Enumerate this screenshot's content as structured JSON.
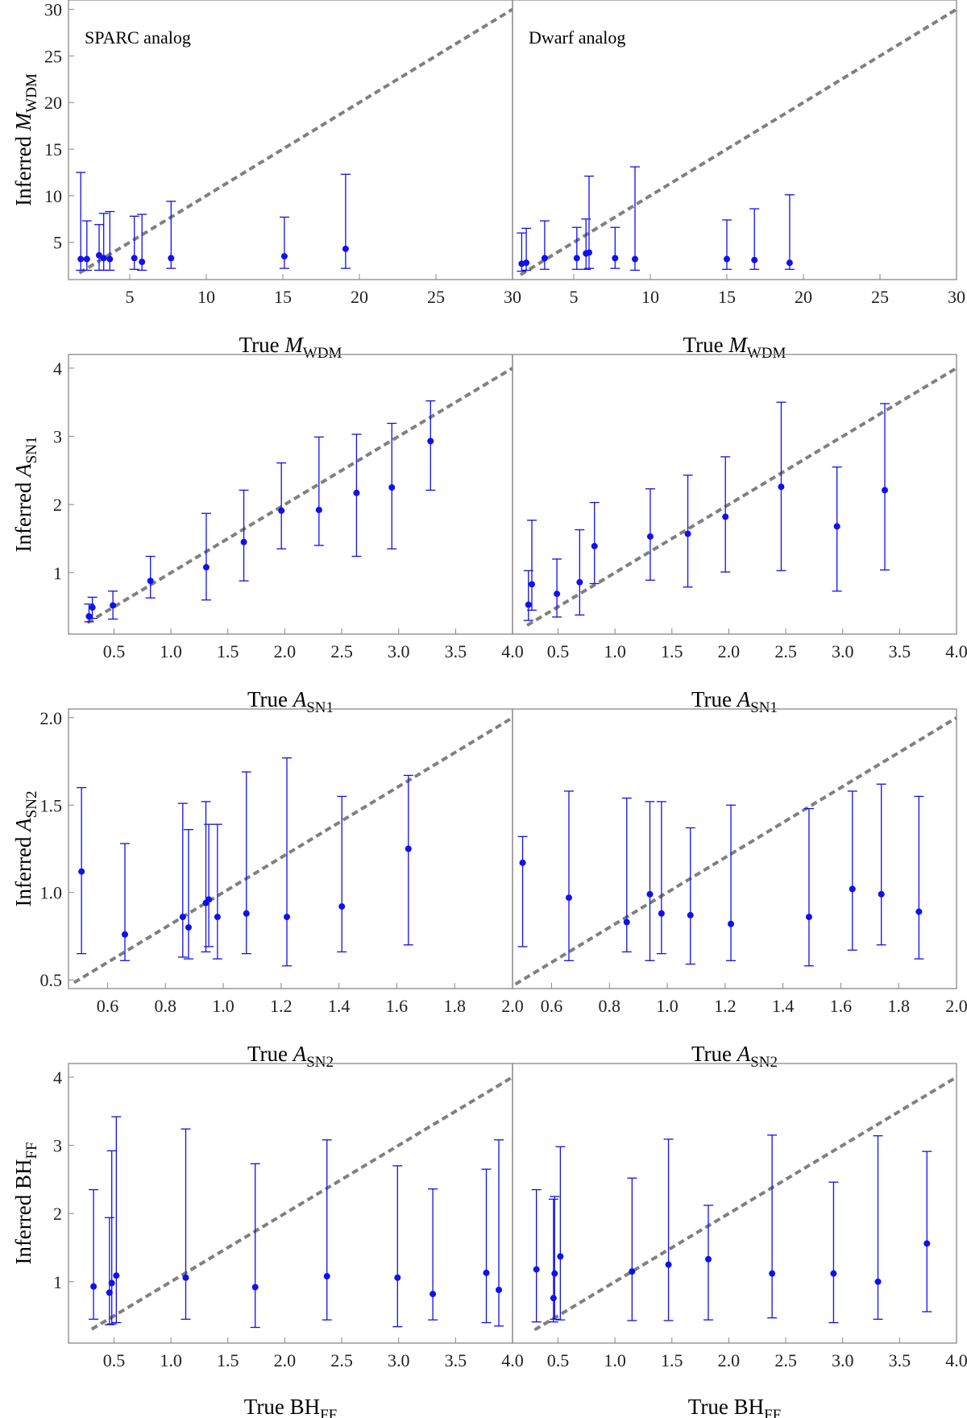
{
  "colors": {
    "points": "#1010f0",
    "diagonal": "#808080",
    "frame": "#888888"
  },
  "chart_data": [
    {
      "type": "scatter",
      "title": "SPARC analog",
      "xlabel": {
        "prefix": "True ",
        "symbol": "M",
        "sub": "WDM"
      },
      "ylabel": {
        "prefix": "Inferred ",
        "symbol": "M",
        "sub": "WDM"
      },
      "xlim": [
        1,
        30
      ],
      "ylim": [
        1,
        31
      ],
      "xticks": [
        5,
        10,
        15,
        20,
        25,
        30
      ],
      "yticks": [
        5,
        10,
        15,
        20,
        25,
        30
      ],
      "reference_line": "y = x",
      "points": [
        {
          "x": 1.8,
          "y": 3.2,
          "lo": 2.0,
          "hi": 12.5
        },
        {
          "x": 2.2,
          "y": 3.2,
          "lo": 2.0,
          "hi": 7.3
        },
        {
          "x": 3.0,
          "y": 3.6,
          "lo": 2.0,
          "hi": 6.9
        },
        {
          "x": 3.3,
          "y": 3.3,
          "lo": 2.0,
          "hi": 8.1
        },
        {
          "x": 3.7,
          "y": 3.2,
          "lo": 2.0,
          "hi": 8.3
        },
        {
          "x": 5.3,
          "y": 3.3,
          "lo": 2.1,
          "hi": 7.8
        },
        {
          "x": 5.8,
          "y": 2.9,
          "lo": 2.0,
          "hi": 8.0
        },
        {
          "x": 7.7,
          "y": 3.3,
          "lo": 2.2,
          "hi": 9.4
        },
        {
          "x": 15.1,
          "y": 3.5,
          "lo": 2.2,
          "hi": 7.7
        },
        {
          "x": 19.1,
          "y": 4.3,
          "lo": 2.2,
          "hi": 12.3
        }
      ]
    },
    {
      "type": "scatter",
      "title": "Dwarf analog",
      "xlabel": {
        "prefix": "True ",
        "symbol": "M",
        "sub": "WDM"
      },
      "ylabel": null,
      "xlim": [
        1,
        30
      ],
      "ylim": [
        1,
        31
      ],
      "xticks": [
        5,
        10,
        15,
        20,
        25,
        30
      ],
      "yticks": [],
      "reference_line": "y = x",
      "points": [
        {
          "x": 1.6,
          "y": 2.7,
          "lo": 1.9,
          "hi": 6.0
        },
        {
          "x": 1.9,
          "y": 2.8,
          "lo": 2.0,
          "hi": 6.5
        },
        {
          "x": 3.1,
          "y": 3.3,
          "lo": 2.1,
          "hi": 7.3
        },
        {
          "x": 5.2,
          "y": 3.3,
          "lo": 2.1,
          "hi": 6.6
        },
        {
          "x": 5.8,
          "y": 3.8,
          "lo": 2.1,
          "hi": 7.5
        },
        {
          "x": 6.0,
          "y": 3.9,
          "lo": 2.2,
          "hi": 12.1
        },
        {
          "x": 7.7,
          "y": 3.3,
          "lo": 2.2,
          "hi": 6.6
        },
        {
          "x": 9.0,
          "y": 3.2,
          "lo": 2.0,
          "hi": 13.1
        },
        {
          "x": 15.0,
          "y": 3.2,
          "lo": 2.1,
          "hi": 7.4
        },
        {
          "x": 16.8,
          "y": 3.1,
          "lo": 2.1,
          "hi": 8.6
        },
        {
          "x": 19.1,
          "y": 2.8,
          "lo": 2.1,
          "hi": 10.1
        }
      ]
    },
    {
      "type": "scatter",
      "title": "",
      "xlabel": {
        "prefix": "True ",
        "symbol": "A",
        "sub": "SN1"
      },
      "ylabel": {
        "prefix": "Inferred ",
        "symbol": "A",
        "sub": "SN1"
      },
      "xlim": [
        0.1,
        4.0
      ],
      "ylim": [
        0.1,
        4.2
      ],
      "xticks": [
        0.5,
        1.0,
        1.5,
        2.0,
        2.5,
        3.0,
        3.5,
        4.0
      ],
      "yticks": [
        1,
        2,
        3,
        4
      ],
      "reference_line": "y = x",
      "points": [
        {
          "x": 0.28,
          "y": 0.36,
          "lo": 0.28,
          "hi": 0.54
        },
        {
          "x": 0.31,
          "y": 0.49,
          "lo": 0.33,
          "hi": 0.64
        },
        {
          "x": 0.49,
          "y": 0.52,
          "lo": 0.32,
          "hi": 0.73
        },
        {
          "x": 0.82,
          "y": 0.88,
          "lo": 0.63,
          "hi": 1.24
        },
        {
          "x": 1.31,
          "y": 1.08,
          "lo": 0.6,
          "hi": 1.87
        },
        {
          "x": 1.64,
          "y": 1.45,
          "lo": 0.88,
          "hi": 2.21
        },
        {
          "x": 1.97,
          "y": 1.91,
          "lo": 1.35,
          "hi": 2.61
        },
        {
          "x": 2.3,
          "y": 1.92,
          "lo": 1.4,
          "hi": 2.99
        },
        {
          "x": 2.63,
          "y": 2.17,
          "lo": 1.24,
          "hi": 3.03
        },
        {
          "x": 2.94,
          "y": 2.25,
          "lo": 1.35,
          "hi": 3.19
        },
        {
          "x": 3.28,
          "y": 2.93,
          "lo": 2.21,
          "hi": 3.52
        }
      ]
    },
    {
      "type": "scatter",
      "title": "",
      "xlabel": {
        "prefix": "True ",
        "symbol": "A",
        "sub": "SN1"
      },
      "ylabel": null,
      "xlim": [
        0.1,
        4.0
      ],
      "ylim": [
        0.1,
        4.2
      ],
      "xticks": [
        0.5,
        1.0,
        1.5,
        2.0,
        2.5,
        3.0,
        3.5,
        4.0
      ],
      "yticks": [],
      "reference_line": "y = x",
      "points": [
        {
          "x": 0.24,
          "y": 0.53,
          "lo": 0.3,
          "hi": 1.03
        },
        {
          "x": 0.27,
          "y": 0.83,
          "lo": 0.45,
          "hi": 1.77
        },
        {
          "x": 0.49,
          "y": 0.69,
          "lo": 0.35,
          "hi": 1.2
        },
        {
          "x": 0.69,
          "y": 0.86,
          "lo": 0.38,
          "hi": 1.63
        },
        {
          "x": 0.82,
          "y": 1.39,
          "lo": 0.84,
          "hi": 2.03
        },
        {
          "x": 1.31,
          "y": 1.53,
          "lo": 0.89,
          "hi": 2.23
        },
        {
          "x": 1.64,
          "y": 1.57,
          "lo": 0.79,
          "hi": 2.43
        },
        {
          "x": 1.97,
          "y": 1.82,
          "lo": 1.01,
          "hi": 2.7
        },
        {
          "x": 2.46,
          "y": 2.26,
          "lo": 1.03,
          "hi": 3.5
        },
        {
          "x": 2.95,
          "y": 1.68,
          "lo": 0.73,
          "hi": 2.55
        },
        {
          "x": 3.37,
          "y": 2.21,
          "lo": 1.04,
          "hi": 3.48
        }
      ]
    },
    {
      "type": "scatter",
      "title": "",
      "xlabel": {
        "prefix": "True ",
        "symbol": "A",
        "sub": "SN2"
      },
      "ylabel": {
        "prefix": "Inferred ",
        "symbol": "A",
        "sub": "SN2"
      },
      "xlim": [
        0.465,
        2.0
      ],
      "ylim": [
        0.45,
        2.05
      ],
      "xticks": [
        0.6,
        0.8,
        1.0,
        1.2,
        1.4,
        1.6,
        1.8,
        2.0
      ],
      "yticks": [
        0.5,
        1.0,
        1.5,
        2.0
      ],
      "reference_line": "y = x",
      "points": [
        {
          "x": 0.51,
          "y": 1.12,
          "lo": 0.65,
          "hi": 1.6
        },
        {
          "x": 0.66,
          "y": 0.76,
          "lo": 0.61,
          "hi": 1.28
        },
        {
          "x": 0.86,
          "y": 0.86,
          "lo": 0.63,
          "hi": 1.51
        },
        {
          "x": 0.88,
          "y": 0.8,
          "lo": 0.62,
          "hi": 1.36
        },
        {
          "x": 0.94,
          "y": 0.94,
          "lo": 0.66,
          "hi": 1.52
        },
        {
          "x": 0.95,
          "y": 0.96,
          "lo": 0.69,
          "hi": 1.39
        },
        {
          "x": 0.98,
          "y": 0.86,
          "lo": 0.62,
          "hi": 1.39
        },
        {
          "x": 1.08,
          "y": 0.88,
          "lo": 0.65,
          "hi": 1.69
        },
        {
          "x": 1.22,
          "y": 0.86,
          "lo": 0.58,
          "hi": 1.77
        },
        {
          "x": 1.41,
          "y": 0.92,
          "lo": 0.66,
          "hi": 1.55
        },
        {
          "x": 1.64,
          "y": 1.25,
          "lo": 0.7,
          "hi": 1.67
        }
      ]
    },
    {
      "type": "scatter",
      "title": "",
      "xlabel": {
        "prefix": "True ",
        "symbol": "A",
        "sub": "SN2"
      },
      "ylabel": null,
      "xlim": [
        0.465,
        2.0
      ],
      "ylim": [
        0.45,
        2.05
      ],
      "xticks": [
        0.6,
        0.8,
        1.0,
        1.2,
        1.4,
        1.6,
        1.8,
        2.0
      ],
      "yticks": [],
      "reference_line": "y = x",
      "points": [
        {
          "x": 0.5,
          "y": 1.17,
          "lo": 0.69,
          "hi": 1.32
        },
        {
          "x": 0.66,
          "y": 0.97,
          "lo": 0.61,
          "hi": 1.58
        },
        {
          "x": 0.86,
          "y": 0.83,
          "lo": 0.66,
          "hi": 1.54
        },
        {
          "x": 0.94,
          "y": 0.99,
          "lo": 0.61,
          "hi": 1.52
        },
        {
          "x": 0.98,
          "y": 0.88,
          "lo": 0.65,
          "hi": 1.52
        },
        {
          "x": 1.08,
          "y": 0.87,
          "lo": 0.59,
          "hi": 1.37
        },
        {
          "x": 1.22,
          "y": 0.82,
          "lo": 0.61,
          "hi": 1.5
        },
        {
          "x": 1.49,
          "y": 0.86,
          "lo": 0.58,
          "hi": 1.48
        },
        {
          "x": 1.64,
          "y": 1.02,
          "lo": 0.67,
          "hi": 1.58
        },
        {
          "x": 1.74,
          "y": 0.99,
          "lo": 0.7,
          "hi": 1.62
        },
        {
          "x": 1.87,
          "y": 0.89,
          "lo": 0.62,
          "hi": 1.55
        }
      ]
    },
    {
      "type": "scatter",
      "title": "",
      "xlabel": {
        "prefix": "True ",
        "symbol": "BH",
        "sub": "FF"
      },
      "ylabel": {
        "prefix": "Inferred ",
        "symbol": "BH",
        "sub": "FF"
      },
      "xlim": [
        0.1,
        4.0
      ],
      "ylim": [
        0.1,
        4.2
      ],
      "xticks": [
        0.5,
        1.0,
        1.5,
        2.0,
        2.5,
        3.0,
        3.5,
        4.0
      ],
      "yticks": [
        1,
        2,
        3,
        4
      ],
      "reference_line": "y = x",
      "points": [
        {
          "x": 0.32,
          "y": 0.93,
          "lo": 0.45,
          "hi": 2.35
        },
        {
          "x": 0.46,
          "y": 0.84,
          "lo": 0.37,
          "hi": 1.94
        },
        {
          "x": 0.48,
          "y": 0.98,
          "lo": 0.38,
          "hi": 2.92
        },
        {
          "x": 0.52,
          "y": 1.09,
          "lo": 0.4,
          "hi": 3.42
        },
        {
          "x": 1.13,
          "y": 1.06,
          "lo": 0.45,
          "hi": 3.24
        },
        {
          "x": 1.74,
          "y": 0.92,
          "lo": 0.33,
          "hi": 2.73
        },
        {
          "x": 2.37,
          "y": 1.08,
          "lo": 0.44,
          "hi": 3.08
        },
        {
          "x": 2.99,
          "y": 1.06,
          "lo": 0.34,
          "hi": 2.7
        },
        {
          "x": 3.3,
          "y": 0.82,
          "lo": 0.44,
          "hi": 2.36
        },
        {
          "x": 3.77,
          "y": 1.13,
          "lo": 0.4,
          "hi": 2.65
        },
        {
          "x": 3.88,
          "y": 0.88,
          "lo": 0.35,
          "hi": 3.08
        }
      ]
    },
    {
      "type": "scatter",
      "title": "",
      "xlabel": {
        "prefix": "True ",
        "symbol": "BH",
        "sub": "FF"
      },
      "ylabel": null,
      "xlim": [
        0.1,
        4.0
      ],
      "ylim": [
        0.1,
        4.2
      ],
      "xticks": [
        0.5,
        1.0,
        1.5,
        2.0,
        2.5,
        3.0,
        3.5,
        4.0
      ],
      "yticks": [],
      "reference_line": "y = x",
      "points": [
        {
          "x": 0.31,
          "y": 1.18,
          "lo": 0.41,
          "hi": 2.35
        },
        {
          "x": 0.46,
          "y": 0.76,
          "lo": 0.41,
          "hi": 2.21
        },
        {
          "x": 0.47,
          "y": 1.12,
          "lo": 0.45,
          "hi": 2.25
        },
        {
          "x": 0.52,
          "y": 1.37,
          "lo": 0.44,
          "hi": 2.98
        },
        {
          "x": 1.15,
          "y": 1.15,
          "lo": 0.43,
          "hi": 2.52
        },
        {
          "x": 1.47,
          "y": 1.25,
          "lo": 0.43,
          "hi": 3.09
        },
        {
          "x": 1.82,
          "y": 1.33,
          "lo": 0.44,
          "hi": 2.12
        },
        {
          "x": 2.38,
          "y": 1.12,
          "lo": 0.47,
          "hi": 3.15
        },
        {
          "x": 2.92,
          "y": 1.12,
          "lo": 0.4,
          "hi": 2.46
        },
        {
          "x": 3.31,
          "y": 1.0,
          "lo": 0.45,
          "hi": 3.14
        },
        {
          "x": 3.74,
          "y": 1.56,
          "lo": 0.56,
          "hi": 2.91
        }
      ]
    }
  ]
}
